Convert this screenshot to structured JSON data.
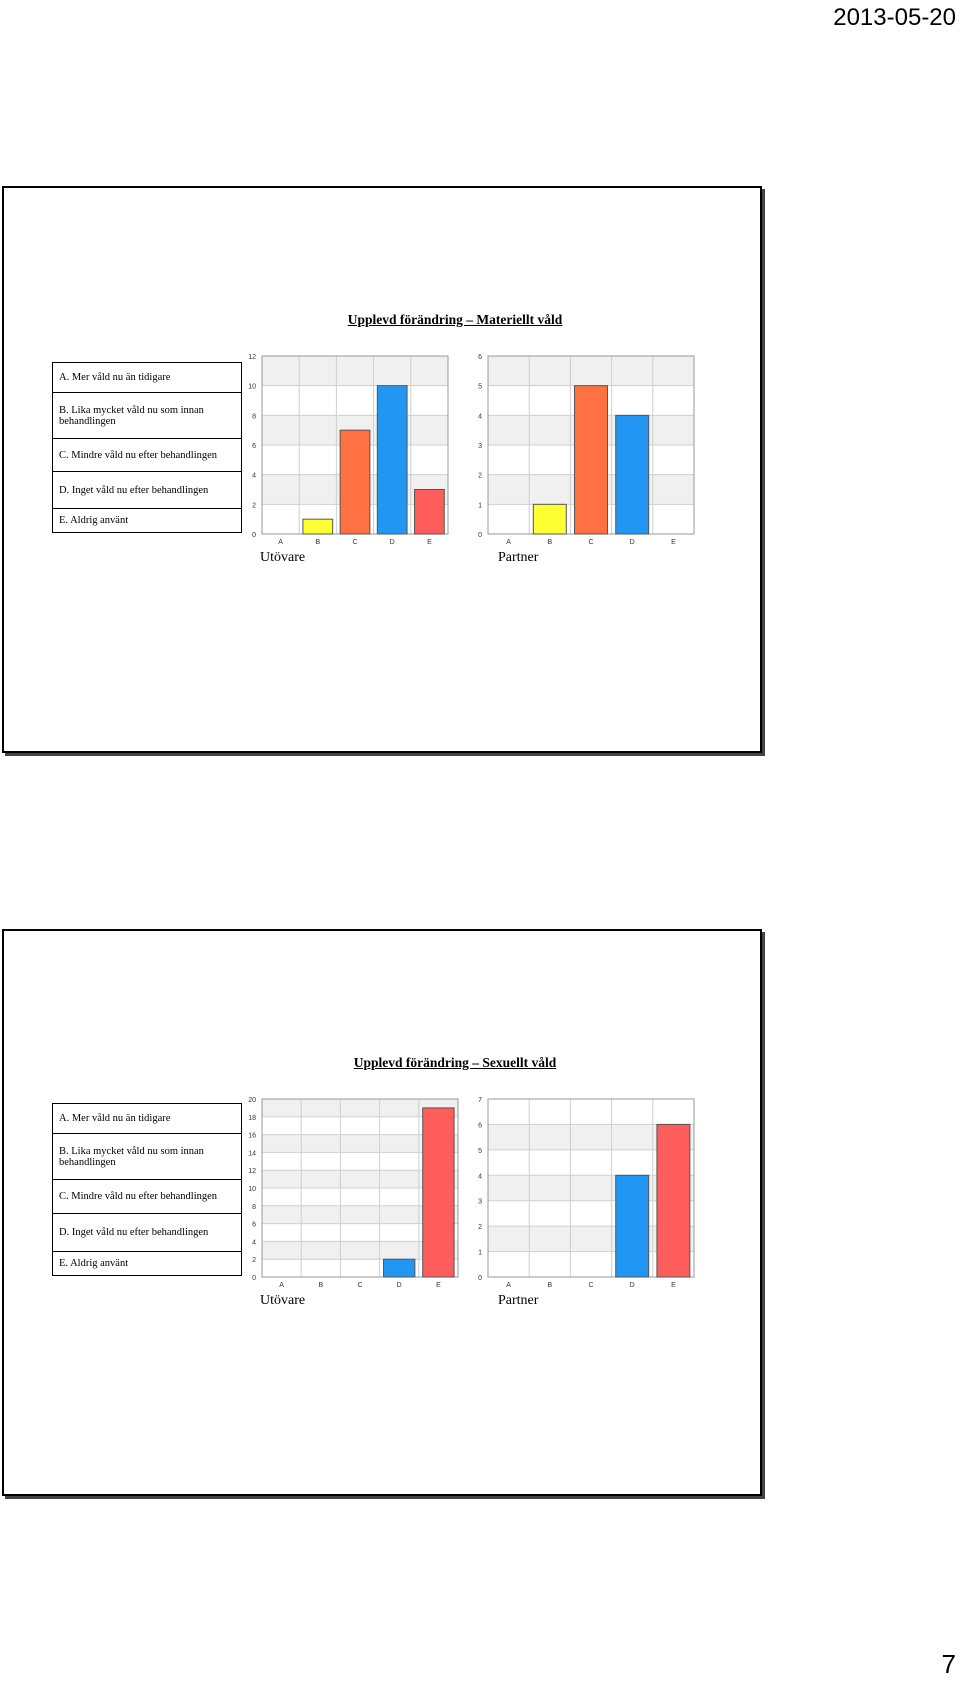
{
  "header": {
    "date": "2013-05-20"
  },
  "footer": {
    "page_number": "7"
  },
  "slides": [
    {
      "title": "Upplevd förändring – Materiellt våld",
      "legend": [
        "A. Mer våld nu än tidigare",
        "B. Lika mycket våld nu som innan behandlingen",
        "C. Mindre våld nu efter behandlingen",
        "D. Inget våld nu efter behandlingen",
        "E. Aldrig använt"
      ],
      "captions": [
        "Utövare",
        "Partner"
      ]
    },
    {
      "title": "Upplevd förändring – Sexuellt våld",
      "legend": [
        "A. Mer våld nu än tidigare",
        "B. Lika mycket våld nu som innan behandlingen",
        "C. Mindre våld nu efter behandlingen",
        "D. Inget våld nu efter behandlingen",
        "E. Aldrig använt"
      ],
      "captions": [
        "Utövare",
        "Partner"
      ]
    }
  ],
  "colors": {
    "A": "#cccccc",
    "B": "#ffff33",
    "C": "#ff7043",
    "D": "#2196f3",
    "E": "#ff5c5c"
  },
  "chart_data": [
    {
      "type": "bar",
      "title": "",
      "categories": [
        "A",
        "B",
        "C",
        "D",
        "E"
      ],
      "values": [
        0,
        1,
        7,
        10,
        3
      ],
      "ylim": [
        0,
        12
      ],
      "ticks": [
        0,
        2,
        4,
        6,
        8,
        10,
        12
      ],
      "grid": true
    },
    {
      "type": "bar",
      "title": "",
      "categories": [
        "A",
        "B",
        "C",
        "D",
        "E"
      ],
      "values": [
        0,
        1,
        5,
        4,
        0
      ],
      "ylim": [
        0,
        6
      ],
      "ticks": [
        0,
        1,
        2,
        3,
        4,
        5,
        6
      ],
      "grid": true
    },
    {
      "type": "bar",
      "title": "",
      "categories": [
        "A",
        "B",
        "C",
        "D",
        "E"
      ],
      "values": [
        0,
        0,
        0,
        2,
        19
      ],
      "ylim": [
        0,
        20
      ],
      "ticks": [
        0,
        2,
        4,
        6,
        8,
        10,
        12,
        14,
        16,
        18,
        20
      ],
      "grid": true
    },
    {
      "type": "bar",
      "title": "",
      "categories": [
        "A",
        "B",
        "C",
        "D",
        "E"
      ],
      "values": [
        0,
        0,
        0,
        4,
        6
      ],
      "ylim": [
        0,
        7
      ],
      "ticks": [
        0,
        1,
        2,
        3,
        4,
        5,
        6,
        7
      ],
      "grid": true
    }
  ]
}
